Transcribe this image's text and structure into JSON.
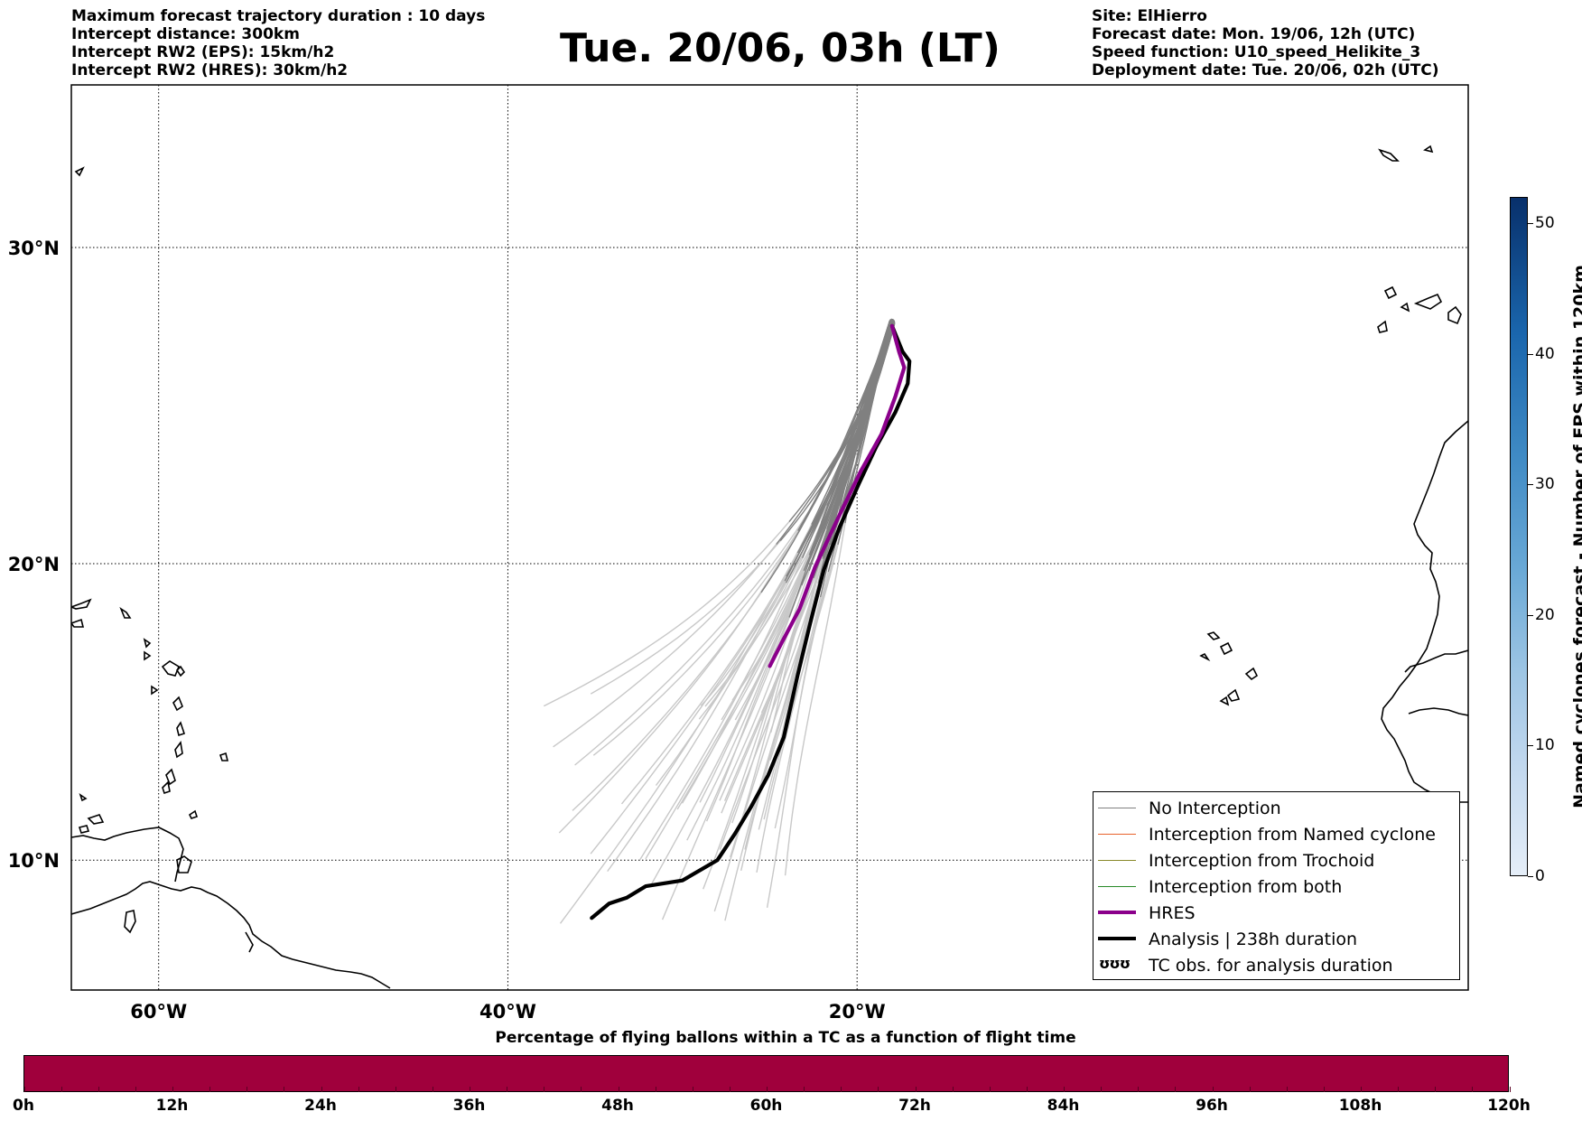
{
  "header": {
    "left_lines": [
      "Maximum forecast trajectory duration : 10 days",
      "Intercept distance: 300km",
      "Intercept RW2 (EPS):  15km/h2",
      "Intercept RW2 (HRES): 30km/h2"
    ],
    "title": "Tue. 20/06, 03h (LT)",
    "right_lines": [
      "Site: ElHierro",
      "Forecast date: Mon. 19/06, 12h (UTC)",
      "Speed function: U10_speed_Helikite_3",
      "Deployment date: Tue. 20/06, 02h (UTC)"
    ]
  },
  "map": {
    "lon_range": [
      -65,
      15
    ],
    "lat_range": [
      5.5,
      34.8
    ],
    "lat_labels": [
      "30°N",
      "20°N",
      "10°N"
    ],
    "lon_labels": [
      "60°W",
      "40°W",
      "20°W"
    ],
    "gridlines": true,
    "site_marker": {
      "lon": -18.0,
      "lat": 27.7
    },
    "hres_track": [
      [
        -18.0,
        27.6
      ],
      [
        -17.6,
        26.8
      ],
      [
        -17.3,
        26.3
      ],
      [
        -17.8,
        25.4
      ],
      [
        -18.6,
        24.2
      ],
      [
        -19.8,
        23.0
      ],
      [
        -21.0,
        21.6
      ],
      [
        -22.4,
        19.9
      ],
      [
        -23.3,
        18.5
      ],
      [
        -24.3,
        17.4
      ],
      [
        -25.0,
        16.6
      ]
    ],
    "analysis_track": [
      [
        -18.0,
        27.6
      ],
      [
        -17.4,
        26.8
      ],
      [
        -17.0,
        26.5
      ],
      [
        -17.1,
        25.8
      ],
      [
        -17.8,
        24.9
      ],
      [
        -18.9,
        23.8
      ],
      [
        -19.9,
        22.6
      ],
      [
        -21.0,
        21.2
      ],
      [
        -21.9,
        19.8
      ],
      [
        -22.7,
        18.0
      ],
      [
        -23.4,
        16.3
      ],
      [
        -24.2,
        14.2
      ],
      [
        -25.1,
        12.9
      ],
      [
        -26.1,
        11.8
      ],
      [
        -27.0,
        10.9
      ],
      [
        -28.0,
        10.0
      ],
      [
        -30.0,
        9.3
      ],
      [
        -32.1,
        9.1
      ],
      [
        -33.2,
        8.7
      ],
      [
        -34.2,
        8.5
      ],
      [
        -35.2,
        8.0
      ]
    ],
    "colors": {
      "eps_near": "#808080",
      "eps_far": "#c8c8c8",
      "hres": "#8b008b",
      "analysis": "#000000"
    }
  },
  "legend": {
    "items": [
      {
        "label": "No Interception",
        "color": "#808080",
        "width": 1.5
      },
      {
        "label": "Interception from Named cyclone",
        "color": "#e8622c",
        "width": 1.5
      },
      {
        "label": "Interception from Trochoid",
        "color": "#8a8a2a",
        "width": 1.5
      },
      {
        "label": "Interception from both",
        "color": "#2a8a2a",
        "width": 1.5
      },
      {
        "label": "HRES",
        "color": "#8b008b",
        "width": 4
      },
      {
        "label": "Analysis | 238h duration",
        "color": "#000000",
        "width": 4
      },
      {
        "label": "TC obs. for analysis duration",
        "symbol": "ʊʊʊ"
      }
    ]
  },
  "bottom_bar": {
    "title": "Percentage of flying ballons within a TC as a function of flight time",
    "color": "#a0003c",
    "labels": [
      "0h",
      "12h",
      "24h",
      "36h",
      "48h",
      "60h",
      "72h",
      "84h",
      "96h",
      "108h",
      "120h"
    ]
  },
  "colorbar": {
    "title": "Named cyclones forecast - Number of EPS within 120km",
    "min": 0,
    "max": 52,
    "ticks": [
      "0",
      "10",
      "20",
      "30",
      "40",
      "50"
    ]
  }
}
